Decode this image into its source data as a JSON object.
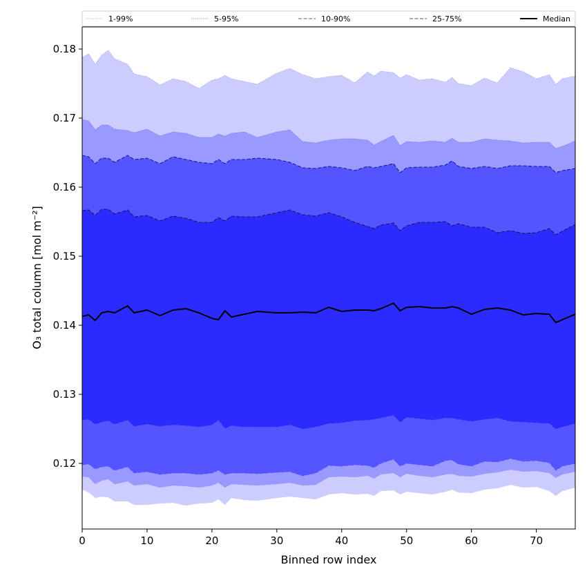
{
  "chart_data": {
    "type": "area",
    "xlabel": "Binned row index",
    "ylabel": "O₃ total column [mol m⁻²]",
    "xlim": [
      0,
      76
    ],
    "ylim": [
      0.1105,
      0.1832
    ],
    "x_ticks": [
      0,
      10,
      20,
      30,
      40,
      50,
      60,
      70
    ],
    "y_ticks": [
      0.12,
      0.13,
      0.14,
      0.15,
      0.16,
      0.17,
      0.18
    ],
    "grid": false,
    "legend_position": "top",
    "x_anchors": [
      0,
      1,
      2,
      3,
      4,
      5,
      7,
      8,
      10,
      12,
      14,
      16,
      18,
      20,
      21,
      22,
      23,
      25,
      27,
      30,
      32,
      34,
      36,
      38,
      40,
      42,
      44,
      45,
      46,
      48,
      49,
      50,
      52,
      54,
      56,
      57,
      58,
      60,
      62,
      64,
      66,
      68,
      70,
      72,
      73,
      74,
      76
    ],
    "bands": [
      {
        "name": "1-99%",
        "color": "#ccccff",
        "line_color": "#8c8cff",
        "line_style": "dotted",
        "lower": [
          0.1162,
          0.1158,
          0.115,
          0.1152,
          0.1151,
          0.1145,
          0.1145,
          0.114,
          0.114,
          0.1142,
          0.1143,
          0.1139,
          0.1142,
          0.1143,
          0.1148,
          0.114,
          0.115,
          0.1147,
          0.1146,
          0.115,
          0.1152,
          0.115,
          0.1148,
          0.1155,
          0.1157,
          0.1155,
          0.1156,
          0.1153,
          0.116,
          0.1161,
          0.1155,
          0.1159,
          0.1157,
          0.1155,
          0.1159,
          0.1162,
          0.1158,
          0.1157,
          0.1162,
          0.1164,
          0.1169,
          0.1165,
          0.1166,
          0.116,
          0.1153,
          0.116,
          0.1165
        ],
        "upper": [
          0.1788,
          0.1793,
          0.1778,
          0.1791,
          0.1798,
          0.1786,
          0.1778,
          0.1764,
          0.176,
          0.1748,
          0.1757,
          0.1753,
          0.1743,
          0.1755,
          0.1757,
          0.1762,
          0.1757,
          0.1753,
          0.1749,
          0.1765,
          0.1772,
          0.1763,
          0.1757,
          0.176,
          0.1762,
          0.1751,
          0.1767,
          0.1761,
          0.1768,
          0.1766,
          0.1758,
          0.1763,
          0.1755,
          0.1757,
          0.1752,
          0.1759,
          0.175,
          0.1747,
          0.1758,
          0.1751,
          0.1773,
          0.1767,
          0.1757,
          0.1763,
          0.1749,
          0.1757,
          0.1761
        ]
      },
      {
        "name": "5-95%",
        "color": "#9999ff",
        "line_color": "#5e5eff",
        "line_style": "dotted",
        "lower": [
          0.1181,
          0.118,
          0.117,
          0.1175,
          0.1177,
          0.117,
          0.1174,
          0.1168,
          0.117,
          0.1165,
          0.1168,
          0.1167,
          0.1165,
          0.1168,
          0.1172,
          0.1165,
          0.117,
          0.1169,
          0.1168,
          0.117,
          0.1172,
          0.1168,
          0.1169,
          0.118,
          0.1181,
          0.118,
          0.1182,
          0.1178,
          0.1184,
          0.1186,
          0.118,
          0.1185,
          0.1182,
          0.118,
          0.1184,
          0.1185,
          0.1182,
          0.1181,
          0.1185,
          0.1187,
          0.1191,
          0.1188,
          0.1189,
          0.1186,
          0.1179,
          0.1184,
          0.1188
        ],
        "upper": [
          0.1698,
          0.1696,
          0.1683,
          0.169,
          0.169,
          0.1684,
          0.1682,
          0.1679,
          0.1684,
          0.1674,
          0.168,
          0.1678,
          0.1672,
          0.1672,
          0.1677,
          0.1674,
          0.1678,
          0.168,
          0.1672,
          0.168,
          0.1683,
          0.1666,
          0.1664,
          0.1668,
          0.167,
          0.167,
          0.1668,
          0.1661,
          0.1666,
          0.1675,
          0.166,
          0.1666,
          0.1665,
          0.1667,
          0.1665,
          0.1671,
          0.1665,
          0.1665,
          0.167,
          0.1668,
          0.1667,
          0.1664,
          0.1665,
          0.1665,
          0.1656,
          0.1659,
          0.1667
        ]
      },
      {
        "name": "10-90%",
        "color": "#5555ff",
        "line_color": "#1c1c8a",
        "line_style": "dashed",
        "lower": [
          0.1198,
          0.1199,
          0.1192,
          0.1195,
          0.1196,
          0.119,
          0.1195,
          0.1186,
          0.1188,
          0.1184,
          0.1186,
          0.1186,
          0.1184,
          0.1186,
          0.119,
          0.1184,
          0.1186,
          0.1186,
          0.1185,
          0.1187,
          0.1188,
          0.1182,
          0.1186,
          0.1197,
          0.1196,
          0.1198,
          0.1197,
          0.1194,
          0.12,
          0.1206,
          0.1196,
          0.12,
          0.1198,
          0.1196,
          0.1204,
          0.1205,
          0.1199,
          0.1196,
          0.1203,
          0.1202,
          0.1207,
          0.1203,
          0.1204,
          0.1201,
          0.119,
          0.1196,
          0.12
        ],
        "upper": [
          0.1646,
          0.1644,
          0.1634,
          0.1642,
          0.1642,
          0.1636,
          0.1646,
          0.164,
          0.1642,
          0.1634,
          0.1644,
          0.164,
          0.1636,
          0.1634,
          0.164,
          0.1634,
          0.164,
          0.164,
          0.1642,
          0.164,
          0.1636,
          0.1628,
          0.1627,
          0.163,
          0.1628,
          0.1624,
          0.163,
          0.1628,
          0.163,
          0.1634,
          0.1621,
          0.1628,
          0.1629,
          0.1629,
          0.1632,
          0.1638,
          0.163,
          0.1627,
          0.163,
          0.1627,
          0.1631,
          0.1631,
          0.163,
          0.163,
          0.1621,
          0.1624,
          0.1627
        ]
      },
      {
        "name": "25-75%",
        "color": "#2b2bff",
        "line_color": "#14146e",
        "line_style": "dashed",
        "lower": [
          0.1263,
          0.1264,
          0.1257,
          0.126,
          0.1262,
          0.1257,
          0.1263,
          0.1254,
          0.1257,
          0.1254,
          0.1256,
          0.1255,
          0.1253,
          0.1256,
          0.1263,
          0.1251,
          0.1255,
          0.1253,
          0.1253,
          0.1253,
          0.1256,
          0.125,
          0.1253,
          0.1258,
          0.1259,
          0.1262,
          0.1263,
          0.1264,
          0.1266,
          0.127,
          0.126,
          0.1267,
          0.1265,
          0.1263,
          0.1266,
          0.1266,
          0.1264,
          0.1261,
          0.1264,
          0.1266,
          0.1261,
          0.126,
          0.1259,
          0.1258,
          0.125,
          0.1253,
          0.1258
        ],
        "upper": [
          0.1566,
          0.1567,
          0.1559,
          0.1568,
          0.1568,
          0.1561,
          0.1567,
          0.1557,
          0.1559,
          0.1551,
          0.1558,
          0.1555,
          0.1549,
          0.1549,
          0.1556,
          0.1551,
          0.1558,
          0.1557,
          0.1557,
          0.1563,
          0.1567,
          0.156,
          0.1558,
          0.1563,
          0.1557,
          0.1549,
          0.1543,
          0.154,
          0.1545,
          0.1548,
          0.1537,
          0.1544,
          0.1549,
          0.1549,
          0.155,
          0.1544,
          0.1547,
          0.1542,
          0.1542,
          0.1534,
          0.1537,
          0.1533,
          0.1534,
          0.154,
          0.1531,
          0.1536,
          0.1546
        ]
      }
    ],
    "median": {
      "name": "Median",
      "color": "#000000",
      "values": [
        0.1413,
        0.1415,
        0.1407,
        0.1418,
        0.142,
        0.1418,
        0.1428,
        0.1418,
        0.1422,
        0.1414,
        0.1422,
        0.1424,
        0.1418,
        0.141,
        0.1408,
        0.1421,
        0.1412,
        0.1416,
        0.142,
        0.1418,
        0.1418,
        0.1419,
        0.1418,
        0.1426,
        0.142,
        0.1422,
        0.1422,
        0.1421,
        0.1424,
        0.1432,
        0.1421,
        0.1426,
        0.1427,
        0.1425,
        0.1425,
        0.1427,
        0.1425,
        0.1416,
        0.1423,
        0.1425,
        0.1422,
        0.1415,
        0.1417,
        0.1416,
        0.1404,
        0.1408,
        0.1416
      ]
    }
  }
}
